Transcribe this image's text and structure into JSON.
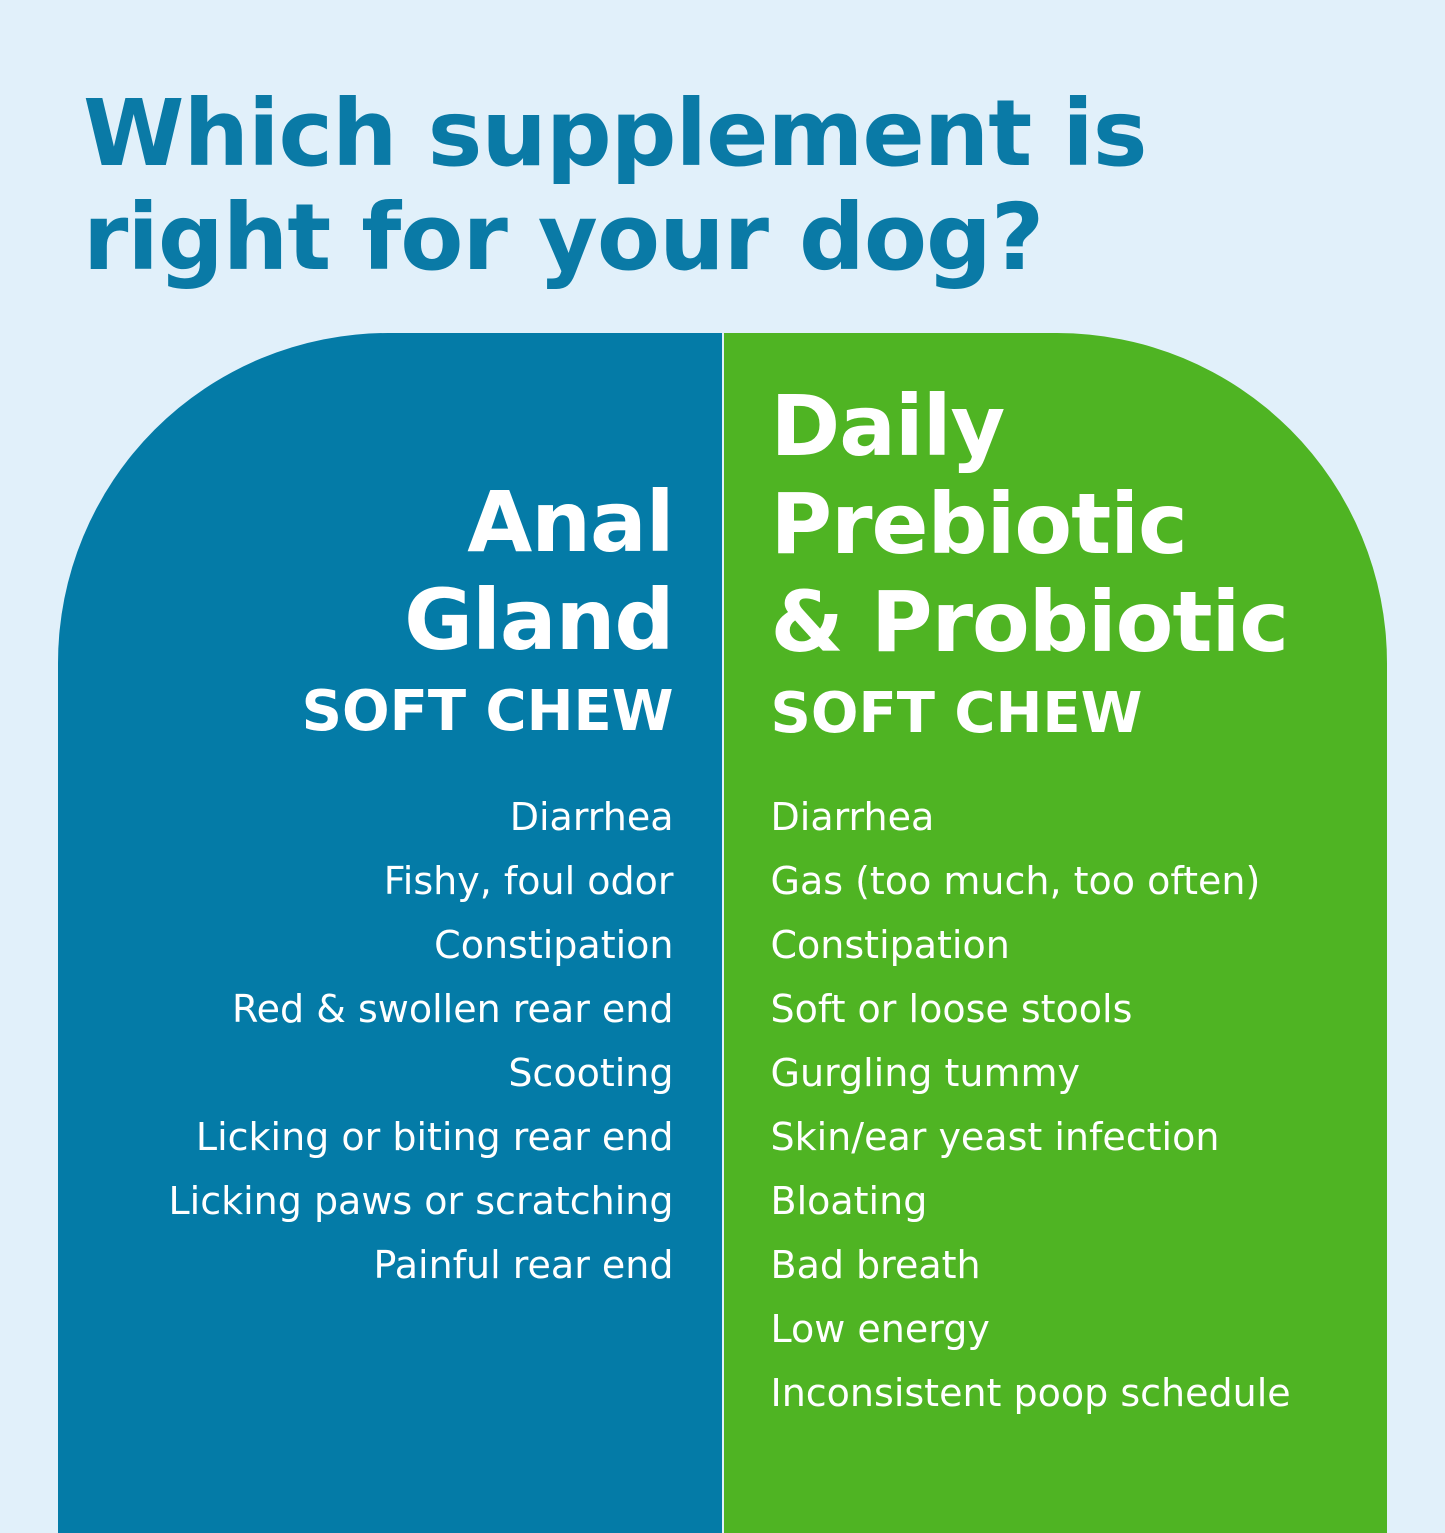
{
  "title": {
    "line1": "Which supplement is",
    "line2": "right for your dog?"
  },
  "colors": {
    "background": "#e1f0fa",
    "title": "#0a7aa6",
    "left_panel": "#047ba7",
    "right_panel": "#4fb423"
  },
  "left": {
    "name_lines": [
      "Anal",
      "Gland"
    ],
    "subtitle": "SOFT CHEW",
    "symptoms": [
      "Diarrhea",
      "Fishy, foul odor",
      "Constipation",
      "Red & swollen rear end",
      "Scooting",
      "Licking or biting rear end",
      "Licking paws or scratching",
      "Painful rear end"
    ]
  },
  "right": {
    "name_lines": [
      "Daily",
      "Prebiotic",
      "& Probiotic"
    ],
    "subtitle": "SOFT CHEW",
    "symptoms": [
      "Diarrhea",
      "Gas (too much, too often)",
      "Constipation",
      "Soft or loose stools",
      "Gurgling tummy",
      "Skin/ear yeast infection",
      "Bloating",
      "Bad breath",
      "Low energy",
      "Inconsistent poop schedule"
    ]
  }
}
